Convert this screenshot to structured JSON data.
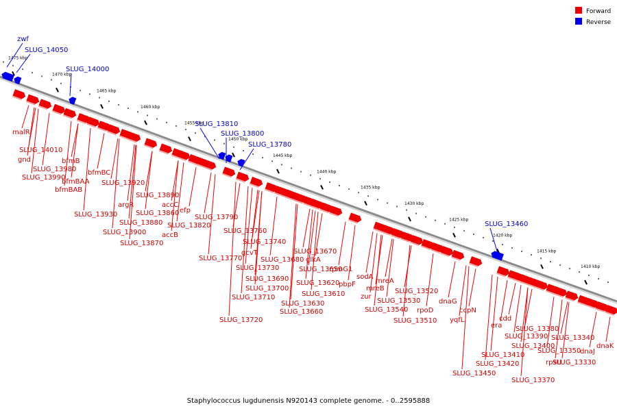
{
  "caption": "Staphylococcus lugdunensis N920143 complete genome. - 0..2595888",
  "legend": [
    {
      "label": "Forward",
      "color": "#ee0000"
    },
    {
      "label": "Reverse",
      "color": "#0000ee"
    }
  ],
  "colors": {
    "forward": "#ee0000",
    "reverse": "#0000ee",
    "backbone": "#888888"
  },
  "scale_ticks": [
    "1475 kbp",
    "1470 kbp",
    "1465 kbp",
    "1460 kbp",
    "1455 kbp",
    "1450 kbp",
    "1445 kbp",
    "1440 kbp",
    "1435 kbp",
    "1430 kbp",
    "1425 kbp",
    "1420 kbp",
    "1415 kbp",
    "1410 kbp"
  ],
  "reverse_genes": [
    "zwf",
    "SLUG_14050",
    "SLUG_14000",
    "SLUG_13810",
    "SLUG_13800",
    "SLUG_13780",
    "SLUG_13460"
  ],
  "forward_genes": [
    "malR",
    "SLUG_14010",
    "gnd",
    "SLUG_13980",
    "SLUG_13990",
    "bfmB",
    "bfmBAA",
    "bfmBAB",
    "bfmBC",
    "SLUG_13920",
    "argR",
    "SLUG_13930",
    "SLUG_13890",
    "SLUG_13860",
    "SLUG_13880",
    "SLUG_13900",
    "SLUG_13870",
    "accC",
    "efp",
    "accB",
    "SLUG_13820",
    "SLUG_13790",
    "SLUG_13760",
    "SLUG_13740",
    "gcvT",
    "SLUG_13770",
    "SLUG_13680",
    "SLUG_13670",
    "glkA",
    "SLUG_13730",
    "SLUG_13650",
    "SLUG_13690",
    "SLUG_13700",
    "SLUG_13710",
    "SLUG_13720",
    "SLUG_13660",
    "SLUG_13630",
    "SLUG_13620",
    "SLUG_13610",
    "rpmG1",
    "pbpF",
    "sodA",
    "zur",
    "mreB",
    "mreA",
    "SLUG_13540",
    "SLUG_13530",
    "SLUG_13520",
    "rpoD",
    "SLUG_13510",
    "dnaG",
    "ccpN",
    "yqfL",
    "cdd",
    "era",
    "SLUG_13380",
    "SLUG_13390",
    "SLUG_13400",
    "SLUG_13410",
    "SLUG_13420",
    "SLUG_13450",
    "SLUG_13340",
    "SLUG_13350",
    "dnaJ",
    "rpsU",
    "SLUG_13330",
    "SLUG_13370",
    "dnaK"
  ]
}
